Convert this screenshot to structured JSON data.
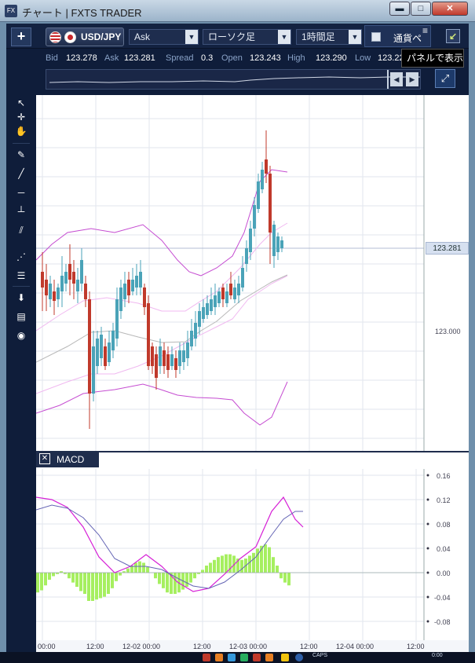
{
  "window": {
    "title": "チャート | FXTS TRADER",
    "app_icon": "FX",
    "min_label": "▬",
    "max_label": "□",
    "close_label": "✕"
  },
  "toolbar": {
    "plus_label": "+",
    "pair": "USD/JPY",
    "side": "Ask",
    "chart_type": "ローソク足",
    "period": "1時間足",
    "panel_tab_label": "通貨ペ",
    "menu_icon": "≡",
    "tooltip": "パネルで表示",
    "panel_arrow": "↙"
  },
  "quote": {
    "bid_label": "Bid",
    "bid": "123.278",
    "ask_label": "Ask",
    "ask": "123.281",
    "spread_label": "Spread",
    "spread": "0.3",
    "open_label": "Open",
    "open": "123.243",
    "high_label": "High",
    "high": "123.290",
    "low_label": "Low",
    "low": "123.22"
  },
  "overview": {
    "left_arrow": "◀",
    "right_arrow": "▶",
    "zoom_icon": "expand-icon"
  },
  "tools": [
    {
      "name": "pointer-icon",
      "glyph": "↖"
    },
    {
      "name": "crosshair-pointer-icon",
      "glyph": "✛"
    },
    {
      "name": "hand-icon",
      "glyph": "✋"
    },
    {
      "name": "pencil-icon",
      "glyph": "✎"
    },
    {
      "name": "trendline-icon",
      "glyph": "╱"
    },
    {
      "name": "horizontal-line-icon",
      "glyph": "─"
    },
    {
      "name": "vertical-line-icon",
      "glyph": "┴"
    },
    {
      "name": "channel-icon",
      "glyph": "⫽"
    },
    {
      "name": "fan-icon",
      "glyph": "⋰"
    },
    {
      "name": "fibonacci-icon",
      "glyph": "☰"
    },
    {
      "name": "download-icon",
      "glyph": "⬇"
    },
    {
      "name": "list-icon",
      "glyph": "▤"
    },
    {
      "name": "camera-icon",
      "glyph": "◉"
    }
  ],
  "price_panel": {
    "current_price_tag": "123.281",
    "y_label": "123.000"
  },
  "macd": {
    "label": "MACD",
    "close_label": "✕",
    "y_ticks": [
      "0.16",
      "0.12",
      "0.08",
      "0.04",
      "0.00",
      "-0.04",
      "-0.08"
    ]
  },
  "x_axis": {
    "labels": [
      "00:00",
      "12:00",
      "12-02 00:00",
      "12:00",
      "12-03 00:00",
      "12:00",
      "12-04 00:00",
      "12:00"
    ]
  },
  "taskbar": {
    "caps": "CAPS",
    "clock": "0:00"
  },
  "colors": {
    "bull": "#4aa3b8",
    "bear": "#c0392b",
    "bollinger": "#c54cd1",
    "macd_hist": "#a6ef60",
    "signal": "#6464b4"
  }
}
